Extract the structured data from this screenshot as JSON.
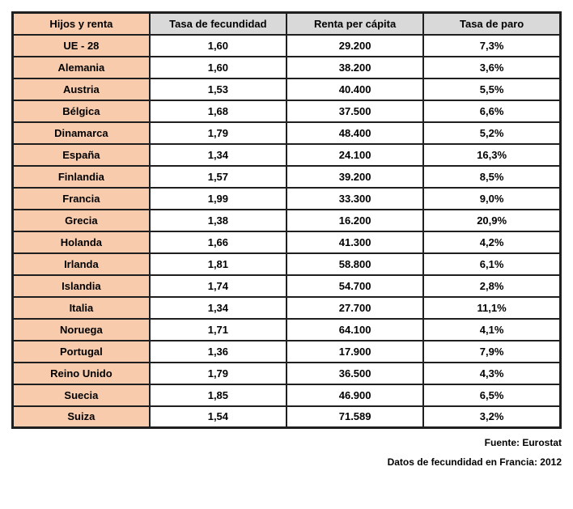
{
  "table": {
    "corner_header": "Hijos y renta",
    "column_headers": [
      "Tasa de fecundidad",
      "Renta per cápita",
      "Tasa de paro"
    ],
    "rows": [
      {
        "label": "UE - 28",
        "fertility": "1,60",
        "income": "29.200",
        "unemployment": "7,3%"
      },
      {
        "label": "Alemania",
        "fertility": "1,60",
        "income": "38.200",
        "unemployment": "3,6%"
      },
      {
        "label": "Austria",
        "fertility": "1,53",
        "income": "40.400",
        "unemployment": "5,5%"
      },
      {
        "label": "Bélgica",
        "fertility": "1,68",
        "income": "37.500",
        "unemployment": "6,6%"
      },
      {
        "label": "Dinamarca",
        "fertility": "1,79",
        "income": "48.400",
        "unemployment": "5,2%"
      },
      {
        "label": "España",
        "fertility": "1,34",
        "income": "24.100",
        "unemployment": "16,3%"
      },
      {
        "label": "Finlandia",
        "fertility": "1,57",
        "income": "39.200",
        "unemployment": "8,5%"
      },
      {
        "label": "Francia",
        "fertility": "1,99",
        "income": "33.300",
        "unemployment": "9,0%"
      },
      {
        "label": "Grecia",
        "fertility": "1,38",
        "income": "16.200",
        "unemployment": "20,9%"
      },
      {
        "label": "Holanda",
        "fertility": "1,66",
        "income": "41.300",
        "unemployment": "4,2%"
      },
      {
        "label": "Irlanda",
        "fertility": "1,81",
        "income": "58.800",
        "unemployment": "6,1%"
      },
      {
        "label": "Islandia",
        "fertility": "1,74",
        "income": "54.700",
        "unemployment": "2,8%"
      },
      {
        "label": "Italia",
        "fertility": "1,34",
        "income": "27.700",
        "unemployment": "11,1%"
      },
      {
        "label": "Noruega",
        "fertility": "1,71",
        "income": "64.100",
        "unemployment": "4,1%"
      },
      {
        "label": "Portugal",
        "fertility": "1,36",
        "income": "17.900",
        "unemployment": "7,9%"
      },
      {
        "label": "Reino Unido",
        "fertility": "1,79",
        "income": "36.500",
        "unemployment": "4,3%"
      },
      {
        "label": "Suecia",
        "fertility": "1,85",
        "income": "46.900",
        "unemployment": "6,5%"
      },
      {
        "label": "Suiza",
        "fertility": "1,54",
        "income": "71.589",
        "unemployment": "3,2%"
      }
    ]
  },
  "footer": {
    "source": "Fuente: Eurostat",
    "note": "Datos de fecundidad en Francia: 2012"
  },
  "colors": {
    "row_header_bg": "#f8cbad",
    "column_header_bg": "#d9d9d9",
    "border": "#1f1f1f"
  },
  "chart_data": {
    "type": "table",
    "title": "Hijos y renta",
    "columns": [
      "Tasa de fecundidad",
      "Renta per cápita",
      "Tasa de paro"
    ],
    "categories": [
      "UE - 28",
      "Alemania",
      "Austria",
      "Bélgica",
      "Dinamarca",
      "España",
      "Finlandia",
      "Francia",
      "Grecia",
      "Holanda",
      "Irlanda",
      "Islandia",
      "Italia",
      "Noruega",
      "Portugal",
      "Reino Unido",
      "Suecia",
      "Suiza"
    ],
    "series": [
      {
        "name": "Tasa de fecundidad",
        "values": [
          1.6,
          1.6,
          1.53,
          1.68,
          1.79,
          1.34,
          1.57,
          1.99,
          1.38,
          1.66,
          1.81,
          1.74,
          1.34,
          1.71,
          1.36,
          1.79,
          1.85,
          1.54
        ]
      },
      {
        "name": "Renta per cápita",
        "values": [
          29200,
          38200,
          40400,
          37500,
          48400,
          24100,
          39200,
          33300,
          16200,
          41300,
          58800,
          54700,
          27700,
          64100,
          17900,
          36500,
          46900,
          71589
        ]
      },
      {
        "name": "Tasa de paro (%)",
        "values": [
          7.3,
          3.6,
          5.5,
          6.6,
          5.2,
          16.3,
          8.5,
          9.0,
          20.9,
          4.2,
          6.1,
          2.8,
          11.1,
          4.1,
          7.9,
          4.3,
          6.5,
          3.2
        ]
      }
    ],
    "annotations": [
      "Fuente: Eurostat",
      "Datos de fecundidad en Francia: 2012"
    ]
  }
}
